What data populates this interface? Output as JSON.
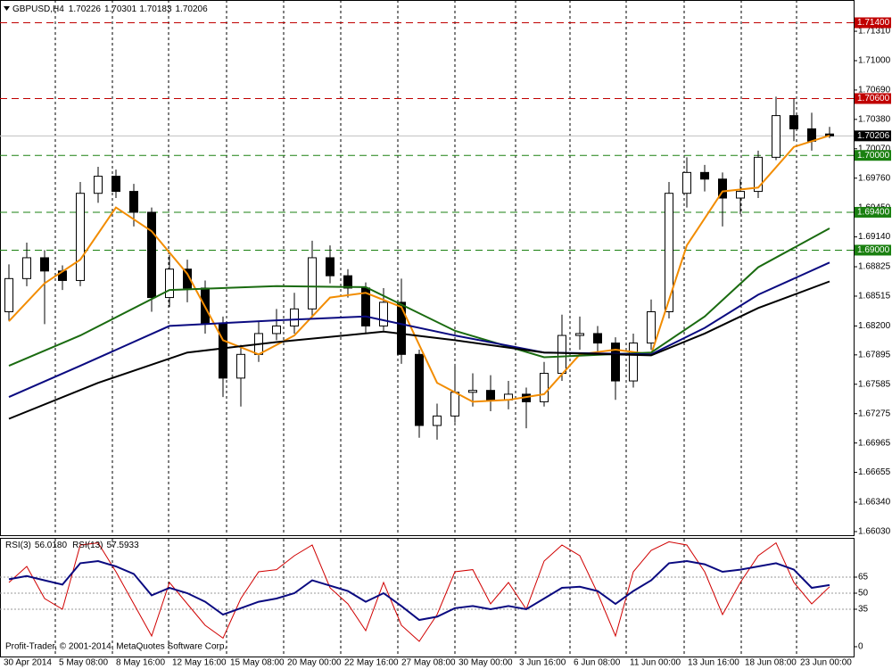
{
  "chart_data": [
    {
      "type": "candlestick",
      "title": "GBPUSD,H4",
      "last_ohlc": [
        1.70226,
        1.70301,
        1.70183,
        1.70206
      ],
      "x": [
        0,
        1,
        2,
        3,
        4,
        5,
        6,
        7,
        8,
        9,
        10,
        11,
        12,
        13,
        14,
        15,
        16,
        17,
        18,
        19,
        20,
        21,
        22,
        23,
        24,
        25,
        26,
        27,
        28,
        29,
        30,
        31,
        32,
        33,
        34,
        35,
        36,
        37,
        38,
        39,
        40,
        41,
        42,
        43,
        44,
        45,
        46
      ],
      "open": [
        1.6835,
        1.687,
        1.6892,
        1.6878,
        1.6868,
        1.696,
        1.6978,
        1.6962,
        1.694,
        1.685,
        1.688,
        1.686,
        1.6822,
        1.6765,
        1.679,
        1.6812,
        1.682,
        1.6838,
        1.6892,
        1.6873,
        1.686,
        1.682,
        1.6845,
        1.679,
        1.6715,
        1.6725,
        1.675,
        1.6752,
        1.6742,
        1.6748,
        1.674,
        1.677,
        1.681,
        1.6812,
        1.6802,
        1.6762,
        1.6802,
        1.6835,
        1.696,
        1.6982,
        1.6975,
        1.6955,
        1.6962,
        1.6998,
        1.7042,
        1.7028,
        1.70226
      ],
      "high": [
        1.6885,
        1.6908,
        1.69,
        1.6884,
        1.6972,
        1.6988,
        1.6985,
        1.697,
        1.6945,
        1.6895,
        1.689,
        1.6868,
        1.683,
        1.68,
        1.6825,
        1.6838,
        1.6855,
        1.691,
        1.6905,
        1.688,
        1.6866,
        1.686,
        1.687,
        1.6795,
        1.6738,
        1.678,
        1.677,
        1.6768,
        1.6762,
        1.6755,
        1.6782,
        1.6832,
        1.683,
        1.682,
        1.6808,
        1.6812,
        1.6848,
        1.6972,
        1.6998,
        1.699,
        1.6982,
        1.6975,
        1.7005,
        1.7062,
        1.706,
        1.7045,
        1.70301
      ],
      "low": [
        1.6825,
        1.6862,
        1.6822,
        1.6858,
        1.6862,
        1.695,
        1.6955,
        1.6925,
        1.6835,
        1.684,
        1.6845,
        1.6812,
        1.6745,
        1.6735,
        1.6782,
        1.6805,
        1.6812,
        1.683,
        1.6865,
        1.685,
        1.6812,
        1.6815,
        1.678,
        1.6702,
        1.67,
        1.6718,
        1.6735,
        1.673,
        1.6732,
        1.6712,
        1.6735,
        1.6762,
        1.6795,
        1.679,
        1.6742,
        1.6755,
        1.6795,
        1.6828,
        1.6945,
        1.6962,
        1.6925,
        1.6938,
        1.6955,
        1.6995,
        1.7015,
        1.7005,
        1.70183
      ],
      "close": [
        1.687,
        1.6892,
        1.6878,
        1.6868,
        1.696,
        1.6978,
        1.6962,
        1.694,
        1.685,
        1.688,
        1.686,
        1.6822,
        1.6765,
        1.679,
        1.6812,
        1.682,
        1.6838,
        1.6892,
        1.6873,
        1.686,
        1.682,
        1.6845,
        1.679,
        1.6715,
        1.6725,
        1.675,
        1.6752,
        1.6742,
        1.6748,
        1.674,
        1.677,
        1.681,
        1.6812,
        1.6802,
        1.6762,
        1.6802,
        1.6835,
        1.696,
        1.6982,
        1.6975,
        1.6955,
        1.6962,
        1.6998,
        1.7042,
        1.7028,
        1.7015,
        1.70206
      ],
      "up_color": "#ffffff",
      "down_color": "#000000",
      "series": [
        {
          "color": "#f28c00",
          "x": [
            0,
            2,
            4,
            6,
            8,
            10,
            12,
            14,
            16,
            18,
            20,
            22,
            24,
            26,
            28,
            30,
            32,
            34,
            36,
            38,
            40,
            42,
            44,
            46
          ],
          "values": [
            1.6825,
            1.6865,
            1.689,
            1.6945,
            1.692,
            1.6875,
            1.6805,
            1.679,
            1.681,
            1.685,
            1.6855,
            1.684,
            1.676,
            1.674,
            1.6742,
            1.6748,
            1.679,
            1.6795,
            1.679,
            1.6905,
            1.6962,
            1.6966,
            1.7009,
            1.7021
          ]
        },
        {
          "color": "#1a6b10",
          "x": [
            0,
            4,
            9,
            15,
            20,
            25,
            30,
            36,
            39,
            42,
            46
          ],
          "values": [
            1.6778,
            1.681,
            1.6858,
            1.6862,
            1.6861,
            1.6815,
            1.6787,
            1.6792,
            1.683,
            1.6882,
            1.6923
          ]
        },
        {
          "color": "#0a0a80",
          "x": [
            0,
            4,
            9,
            15,
            20,
            25,
            30,
            36,
            39,
            42,
            46
          ],
          "values": [
            1.6745,
            1.6778,
            1.682,
            1.6826,
            1.683,
            1.681,
            1.6792,
            1.679,
            1.6818,
            1.6853,
            1.6887
          ]
        },
        {
          "color": "#000000",
          "x": [
            0,
            5,
            10,
            15,
            21,
            25,
            30,
            36,
            39,
            42,
            46
          ],
          "values": [
            1.6722,
            1.676,
            1.6792,
            1.6803,
            1.6814,
            1.6805,
            1.6792,
            1.6789,
            1.6812,
            1.6839,
            1.6867
          ]
        }
      ],
      "xlim": [
        -0.5,
        47.35
      ],
      "xticks": [
        {
          "value": -0.5,
          "label": "30 Apr 2014"
        },
        {
          "value": 2.6,
          "label": "5 May 08:00"
        },
        {
          "value": 5.8,
          "label": "8 May 16:00"
        },
        {
          "value": 8.95,
          "label": "12 May 16:00"
        },
        {
          "value": 12.2,
          "label": "15 May 08:00"
        },
        {
          "value": 15.4,
          "label": "20 May 00:00"
        },
        {
          "value": 18.6,
          "label": "22 May 16:00"
        },
        {
          "value": 21.8,
          "label": "27 May 08:00"
        },
        {
          "value": 25,
          "label": "30 May 00:00"
        },
        {
          "value": 28.4,
          "label": "3 Jun 16:00"
        },
        {
          "value": 31.45,
          "label": "6 Jun 08:00"
        },
        {
          "value": 34.6,
          "label": "11 Jun 00:00"
        },
        {
          "value": 37.85,
          "label": "13 Jun 16:00"
        },
        {
          "value": 41.05,
          "label": "18 Jun 08:00"
        },
        {
          "value": 44.15,
          "label": "23 Jun 00:00"
        }
      ],
      "ylim": [
        1.65992,
        1.7164
      ],
      "yticks": [
        {
          "value": 1.7131,
          "label": "1.71310"
        },
        {
          "value": 1.71,
          "label": "1.71000"
        },
        {
          "value": 1.7069,
          "label": "1.70690"
        },
        {
          "value": 1.7038,
          "label": "1.70380"
        },
        {
          "value": 1.7007,
          "label": "1.70070"
        },
        {
          "value": 1.6976,
          "label": "1.69760"
        },
        {
          "value": 1.6945,
          "label": "1.69450"
        },
        {
          "value": 1.6914,
          "label": "1.69140"
        },
        1.68825,
        1.68515,
        {
          "value": 1.682,
          "label": "1.68200"
        },
        1.67895,
        1.67585,
        1.67275,
        1.66965,
        1.66655,
        {
          "value": 1.6634,
          "label": "1.66340"
        },
        {
          "value": 1.6603,
          "label": "1.66030"
        }
      ],
      "levels": [
        {
          "value": 1.714,
          "label": "1.71400",
          "color": "#c00000"
        },
        {
          "value": 1.706,
          "label": "1.70600",
          "color": "#c00000"
        },
        {
          "value": 1.7,
          "label": "1.70000",
          "color": "#1a8010"
        },
        {
          "value": 1.694,
          "label": "1.69400",
          "color": "#1a8010"
        },
        {
          "value": 1.69,
          "label": "1.69000",
          "color": "#1a8010"
        }
      ],
      "bid": 1.70206,
      "grid": true
    },
    {
      "type": "line",
      "x": [
        0,
        1,
        2,
        3,
        4,
        5,
        6,
        7,
        8,
        9,
        10,
        11,
        12,
        13,
        14,
        15,
        16,
        17,
        18,
        19,
        20,
        21,
        22,
        23,
        24,
        25,
        26,
        27,
        28,
        29,
        30,
        31,
        32,
        33,
        34,
        35,
        36,
        37,
        38,
        39,
        40,
        41,
        42,
        43,
        44,
        45,
        46
      ],
      "series": [
        {
          "name": "RSI(3)",
          "last": {
            "value": 56.018,
            "label": "56.0180"
          },
          "color": "#d00000",
          "values": [
            60,
            75,
            45,
            35,
            95,
            97,
            70,
            40,
            10,
            60,
            40,
            20,
            8,
            45,
            70,
            72,
            85,
            95,
            55,
            40,
            15,
            60,
            20,
            5,
            30,
            70,
            72,
            40,
            60,
            35,
            80,
            95,
            85,
            50,
            10,
            70,
            90,
            98,
            95,
            70,
            30,
            60,
            85,
            97,
            60,
            40,
            56.018
          ]
        },
        {
          "name": "RSI(13)",
          "last": 57.5933,
          "color": "#0a0a80",
          "values": [
            63,
            66,
            62,
            58,
            78,
            80,
            75,
            68,
            48,
            55,
            50,
            42,
            30,
            36,
            42,
            45,
            50,
            62,
            57,
            52,
            42,
            50,
            38,
            25,
            28,
            36,
            38,
            35,
            38,
            35,
            45,
            55,
            56,
            52,
            40,
            52,
            62,
            78,
            80,
            77,
            70,
            72,
            75,
            78,
            72,
            55,
            57.5933
          ]
        }
      ],
      "ylim": [
        0,
        100
      ],
      "yticks": [
        0,
        35,
        50,
        65
      ],
      "levels": [
        35,
        50,
        65
      ]
    }
  ],
  "copyright": "Profit-Trader, © 2001-2014, MetaQuotes Software Corp."
}
